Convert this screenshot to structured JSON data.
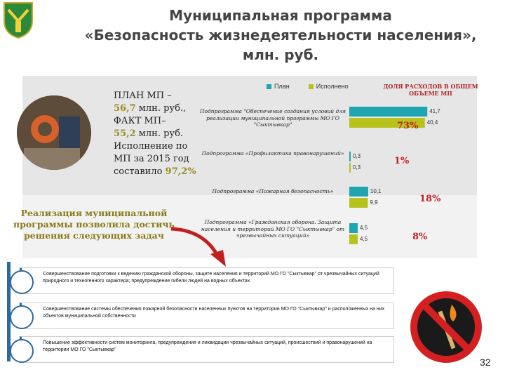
{
  "title": {
    "line1": "Муниципальная программа",
    "line2": "«Безопасность жизнедеятельности населения»,",
    "line3": "млн. руб."
  },
  "summary": {
    "plan_label": "ПЛАН МП –",
    "plan_value": "56,7",
    "plan_unit": " млн. руб.,",
    "fact_label": "ФАКТ МП–",
    "fact_value": "55,2",
    "fact_unit": " млн. руб.",
    "execution_text": "Исполнение по МП за 2015 год составило",
    "execution_value": "97,2%"
  },
  "conclusion": "Реализация муниципальной программы позволила достичь решения следующих задач",
  "legend": {
    "plan": "План",
    "fact": "Исполнено"
  },
  "share_header": "ДОЛЯ РАСХОДОВ В ОБЩЕМ ОБЪЕМЕ МП",
  "colors": {
    "plan": "#1fa5b0",
    "fact": "#b8c21c",
    "share": "#c02020",
    "accent": "#2a6aa0"
  },
  "chart_data": {
    "type": "bar",
    "orientation": "horizontal",
    "categories": [
      "Подпрограмма \"Обеспечение создания условий для реализации муниципальной программы МО ГО \"Сыктывкар\"",
      "Подпрограмма «Профилактика правонарушений»",
      "Подпрограмма «Пожарная безопасность»",
      "Подпрограмма «Гражданская оборона. Защита населения и территорий МО ГО \"Сыктывкар\" от чрезвычайных ситуаций»"
    ],
    "series": [
      {
        "name": "План",
        "values": [
          41.7,
          0.3,
          10.1,
          4.5
        ],
        "labels": [
          "41,7",
          "0,3",
          "10,1",
          "4,5"
        ]
      },
      {
        "name": "Исполнено",
        "values": [
          40.4,
          0.3,
          9.9,
          4.5
        ],
        "labels": [
          "40,4",
          "0,3",
          "9,9",
          "4,5"
        ]
      }
    ],
    "shares": [
      "73%",
      "1%",
      "18%",
      "8%"
    ],
    "xlim": [
      0,
      45
    ],
    "grid": false,
    "legend_position": "top"
  },
  "tasks": [
    "Совершенствование подготовки к ведению гражданской обороны, защите населения и территорий МО ГО \"Сыктывкар\" от чрезвычайных ситуаций природного и техногенного характера; предупреждение гибели людей на водных объектах",
    "Совершенствование системы обеспечения пожарной безопасности населенных пунктов на территории МО ГО \"Сыктывкар\" и расположенных на них объектов муниципальной собственности",
    "Повышение эффективности систем мониторинга, предупреждения и ликвидации чрезвычайных ситуаций, происшествий и правонарушений на территории МО ГО \"Сыктывкар\""
  ],
  "page_number": "32"
}
